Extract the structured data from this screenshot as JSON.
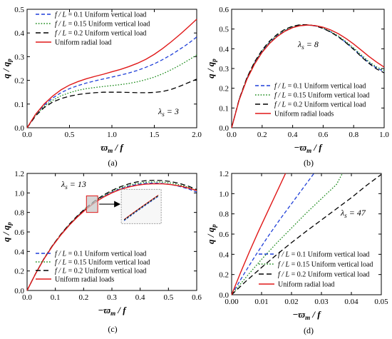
{
  "chart_data": [
    {
      "type": "line",
      "tag": "(a)",
      "lambda_label": "λs = 3",
      "xlabel": "ϖm / f",
      "ylabel": "q / qp",
      "xlim": [
        0,
        2.0
      ],
      "ylim": [
        0,
        0.5
      ],
      "xticks": [
        "0.0",
        "0.5",
        "1.0",
        "1.5",
        "2.0"
      ],
      "yticks": [
        "0.0",
        "0.1",
        "0.2",
        "0.3",
        "0.4",
        "0.5"
      ],
      "legend_position": "top-left",
      "series": [
        {
          "name": "f / L = 0.1   Uniform vertical load",
          "color": "#1f3fd8",
          "dash": "blue-dash",
          "x": [
            0,
            0.1,
            0.2,
            0.3,
            0.4,
            0.5,
            0.6,
            0.7,
            0.8,
            0.9,
            1.0,
            1.1,
            1.2,
            1.3,
            1.4,
            1.5,
            1.6,
            1.7,
            1.8,
            1.9,
            2.0
          ],
          "y": [
            0,
            0.055,
            0.095,
            0.125,
            0.148,
            0.165,
            0.178,
            0.189,
            0.198,
            0.206,
            0.214,
            0.222,
            0.231,
            0.242,
            0.255,
            0.27,
            0.288,
            0.308,
            0.331,
            0.355,
            0.383
          ]
        },
        {
          "name": "f / L = 0.15   Uniform vertical load",
          "color": "#1a8a1a",
          "dash": "dot",
          "x": [
            0,
            0.1,
            0.2,
            0.3,
            0.4,
            0.5,
            0.6,
            0.7,
            0.8,
            0.9,
            1.0,
            1.1,
            1.2,
            1.3,
            1.4,
            1.5,
            1.6,
            1.7,
            1.8,
            1.9,
            2.0
          ],
          "y": [
            0,
            0.053,
            0.09,
            0.116,
            0.135,
            0.148,
            0.158,
            0.165,
            0.17,
            0.174,
            0.178,
            0.182,
            0.187,
            0.194,
            0.203,
            0.214,
            0.228,
            0.245,
            0.264,
            0.285,
            0.307
          ]
        },
        {
          "name": "f / L = 0.2   Uniform vertical load",
          "color": "#000000",
          "dash": "black-dash",
          "x": [
            0,
            0.1,
            0.2,
            0.3,
            0.4,
            0.5,
            0.6,
            0.7,
            0.8,
            0.9,
            1.0,
            1.1,
            1.2,
            1.3,
            1.4,
            1.5,
            1.6,
            1.7,
            1.8,
            1.9,
            2.0
          ],
          "y": [
            0,
            0.05,
            0.085,
            0.108,
            0.123,
            0.133,
            0.14,
            0.145,
            0.148,
            0.15,
            0.15,
            0.15,
            0.149,
            0.148,
            0.148,
            0.149,
            0.153,
            0.162,
            0.175,
            0.19,
            0.205
          ]
        },
        {
          "name": "Uniform radial load",
          "color": "#e01818",
          "dash": "solid",
          "x": [
            0,
            0.1,
            0.2,
            0.3,
            0.4,
            0.5,
            0.6,
            0.7,
            0.8,
            0.9,
            1.0,
            1.1,
            1.2,
            1.3,
            1.4,
            1.5,
            1.6,
            1.7,
            1.8,
            1.9,
            2.0
          ],
          "y": [
            0,
            0.057,
            0.1,
            0.133,
            0.16,
            0.18,
            0.195,
            0.207,
            0.217,
            0.226,
            0.236,
            0.246,
            0.258,
            0.272,
            0.289,
            0.31,
            0.335,
            0.363,
            0.393,
            0.425,
            0.458
          ]
        }
      ]
    },
    {
      "type": "line",
      "tag": "(b)",
      "lambda_label": "λs = 8",
      "xlabel": "−ϖm / f",
      "ylabel": "q / qp",
      "xlim": [
        0,
        1.0
      ],
      "ylim": [
        0,
        0.6
      ],
      "xticks": [
        "0.0",
        "0.2",
        "0.4",
        "0.6",
        "0.8",
        "1.0"
      ],
      "yticks": [
        "0.0",
        "0.1",
        "0.2",
        "0.3",
        "0.4",
        "0.5",
        "0.6"
      ],
      "legend_position": "bottom-center",
      "series": [
        {
          "name": "f / L = 0.1   Uniform vertical load",
          "color": "#1f3fd8",
          "dash": "blue-dash",
          "x": [
            0,
            0.05,
            0.1,
            0.15,
            0.2,
            0.25,
            0.3,
            0.35,
            0.4,
            0.45,
            0.5,
            0.55,
            0.6,
            0.65,
            0.7,
            0.75,
            0.8,
            0.85,
            0.9,
            0.95,
            1.0
          ],
          "y": [
            0,
            0.145,
            0.25,
            0.328,
            0.388,
            0.433,
            0.467,
            0.492,
            0.509,
            0.518,
            0.52,
            0.515,
            0.503,
            0.485,
            0.461,
            0.432,
            0.399,
            0.363,
            0.329,
            0.303,
            0.285
          ]
        },
        {
          "name": "f / L = 0.15   Uniform vertical load",
          "color": "#1a8a1a",
          "dash": "dot",
          "x": [
            0,
            0.05,
            0.1,
            0.15,
            0.2,
            0.25,
            0.3,
            0.35,
            0.4,
            0.45,
            0.5,
            0.55,
            0.6,
            0.65,
            0.7,
            0.75,
            0.8,
            0.85,
            0.9,
            0.95,
            1.0
          ],
          "y": [
            0,
            0.145,
            0.251,
            0.33,
            0.39,
            0.436,
            0.47,
            0.495,
            0.511,
            0.52,
            0.521,
            0.516,
            0.504,
            0.487,
            0.464,
            0.436,
            0.404,
            0.369,
            0.335,
            0.308,
            0.29
          ]
        },
        {
          "name": "f / L = 0.2   Uniform vertical load",
          "color": "#000000",
          "dash": "black-dash",
          "x": [
            0,
            0.05,
            0.1,
            0.15,
            0.2,
            0.25,
            0.3,
            0.35,
            0.4,
            0.45,
            0.5,
            0.55,
            0.6,
            0.65,
            0.7,
            0.75,
            0.8,
            0.85,
            0.9,
            0.95,
            1.0
          ],
          "y": [
            0,
            0.146,
            0.253,
            0.333,
            0.394,
            0.44,
            0.474,
            0.499,
            0.514,
            0.522,
            0.522,
            0.516,
            0.503,
            0.484,
            0.46,
            0.43,
            0.397,
            0.36,
            0.326,
            0.298,
            0.278
          ]
        },
        {
          "name": "Uniform radial loads",
          "color": "#e01818",
          "dash": "solid",
          "x": [
            0,
            0.05,
            0.1,
            0.15,
            0.2,
            0.25,
            0.3,
            0.35,
            0.4,
            0.45,
            0.5,
            0.55,
            0.6,
            0.65,
            0.7,
            0.75,
            0.8,
            0.85,
            0.9,
            0.95,
            1.0
          ],
          "y": [
            0,
            0.142,
            0.245,
            0.322,
            0.382,
            0.428,
            0.463,
            0.489,
            0.507,
            0.517,
            0.52,
            0.517,
            0.509,
            0.495,
            0.476,
            0.452,
            0.424,
            0.393,
            0.361,
            0.333,
            0.307
          ]
        }
      ]
    },
    {
      "type": "line",
      "tag": "(c)",
      "lambda_label": "λs = 13",
      "xlabel": "−ϖm / f",
      "ylabel": "q / qp",
      "xlim": [
        0,
        0.6
      ],
      "ylim": [
        0,
        1.2
      ],
      "xticks": [
        "0.0",
        "0.1",
        "0.2",
        "0.3",
        "0.4",
        "0.5",
        "0.6"
      ],
      "yticks": [
        "0.0",
        "0.2",
        "0.4",
        "0.6",
        "0.8",
        "1.0",
        "1.2"
      ],
      "legend_position": "bottom-center",
      "inset": "zoom box",
      "series": [
        {
          "name": "f / L = 0.1   Uniform vertical load",
          "color": "#1f3fd8",
          "dash": "blue-dash",
          "x": [
            0,
            0.03,
            0.06,
            0.09,
            0.12,
            0.15,
            0.18,
            0.21,
            0.24,
            0.27,
            0.3,
            0.33,
            0.36,
            0.39,
            0.42,
            0.45,
            0.48,
            0.51,
            0.54,
            0.57,
            0.6
          ],
          "y": [
            0,
            0.172,
            0.326,
            0.459,
            0.575,
            0.676,
            0.765,
            0.843,
            0.909,
            0.964,
            1.008,
            1.043,
            1.069,
            1.087,
            1.098,
            1.101,
            1.097,
            1.086,
            1.067,
            1.042,
            1.008
          ]
        },
        {
          "name": "f / L = 0.15   Uniform vertical load",
          "color": "#1a8a1a",
          "dash": "dot",
          "x": [
            0,
            0.03,
            0.06,
            0.09,
            0.12,
            0.15,
            0.18,
            0.21,
            0.24,
            0.27,
            0.3,
            0.33,
            0.36,
            0.39,
            0.42,
            0.45,
            0.48,
            0.51,
            0.54,
            0.57,
            0.6
          ],
          "y": [
            0,
            0.172,
            0.327,
            0.46,
            0.577,
            0.679,
            0.768,
            0.847,
            0.914,
            0.97,
            1.016,
            1.052,
            1.079,
            1.098,
            1.11,
            1.114,
            1.111,
            1.101,
            1.083,
            1.058,
            1.025
          ]
        },
        {
          "name": "f / L = 0.2   Uniform vertical load",
          "color": "#000000",
          "dash": "black-dash",
          "x": [
            0,
            0.03,
            0.06,
            0.09,
            0.12,
            0.15,
            0.18,
            0.21,
            0.24,
            0.27,
            0.3,
            0.33,
            0.36,
            0.39,
            0.42,
            0.45,
            0.48,
            0.51,
            0.54,
            0.57,
            0.6
          ],
          "y": [
            0,
            0.173,
            0.328,
            0.462,
            0.579,
            0.682,
            0.772,
            0.852,
            0.92,
            0.978,
            1.026,
            1.064,
            1.093,
            1.114,
            1.126,
            1.13,
            1.127,
            1.116,
            1.097,
            1.07,
            1.035
          ]
        },
        {
          "name": "Uniform radial loads",
          "color": "#e01818",
          "dash": "solid",
          "x": [
            0,
            0.03,
            0.06,
            0.09,
            0.12,
            0.15,
            0.18,
            0.21,
            0.24,
            0.27,
            0.3,
            0.33,
            0.36,
            0.39,
            0.42,
            0.45,
            0.48,
            0.51,
            0.54,
            0.57,
            0.6
          ],
          "y": [
            0,
            0.171,
            0.324,
            0.456,
            0.571,
            0.671,
            0.759,
            0.836,
            0.902,
            0.957,
            1.001,
            1.036,
            1.062,
            1.08,
            1.091,
            1.095,
            1.093,
            1.085,
            1.071,
            1.051,
            1.025
          ]
        }
      ]
    },
    {
      "type": "line",
      "tag": "(d)",
      "lambda_label": "λs = 47",
      "xlabel": "−ϖm / f",
      "ylabel": "q / qp",
      "xlim": [
        0,
        0.05
      ],
      "ylim": [
        0,
        1.2
      ],
      "xticks": [
        "0.00",
        "0.01",
        "0.02",
        "0.03",
        "0.04",
        "0.05"
      ],
      "yticks": [
        "0.0",
        "0.2",
        "0.4",
        "0.6",
        "0.8",
        "1.0",
        "1.2"
      ],
      "legend_position": "bottom-right",
      "series": [
        {
          "name": "f / L = 0.1   Uniform vertical load",
          "color": "#1f3fd8",
          "dash": "blue-dash",
          "x": [
            0,
            0.004,
            0.008,
            0.012,
            0.016,
            0.02,
            0.024,
            0.0275
          ],
          "y": [
            0,
            0.2,
            0.39,
            0.57,
            0.74,
            0.9,
            1.06,
            1.2
          ]
        },
        {
          "name": "f / L = 0.15   Uniform vertical load",
          "color": "#1a8a1a",
          "dash": "dot",
          "x": [
            0,
            0.005,
            0.01,
            0.015,
            0.02,
            0.025,
            0.03,
            0.035,
            0.037
          ],
          "y": [
            0,
            0.18,
            0.35,
            0.51,
            0.66,
            0.81,
            0.95,
            1.09,
            1.2
          ]
        },
        {
          "name": "f / L = 0.2   Uniform vertical load",
          "color": "#000000",
          "dash": "black-dash",
          "x": [
            0,
            0.005,
            0.01,
            0.015,
            0.02,
            0.025,
            0.03,
            0.035,
            0.04,
            0.045,
            0.05
          ],
          "y": [
            0,
            0.14,
            0.27,
            0.395,
            0.515,
            0.63,
            0.74,
            0.85,
            0.96,
            1.08,
            1.19
          ]
        },
        {
          "name": "Uniform radial load",
          "color": "#e01818",
          "dash": "solid",
          "x": [
            0,
            0.003,
            0.006,
            0.009,
            0.012,
            0.015,
            0.018
          ],
          "y": [
            0,
            0.22,
            0.43,
            0.63,
            0.82,
            1.01,
            1.2
          ]
        }
      ]
    }
  ]
}
